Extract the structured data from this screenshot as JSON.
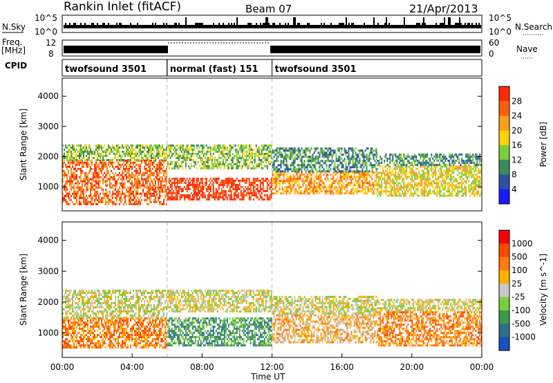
{
  "header": {
    "title": "Rankin Inlet (fitACF)",
    "beam": "Beam 07",
    "date": "21/Apr/2013"
  },
  "top_panels": {
    "nsky_label": "N.Sky",
    "nsky_ticks": [
      "10^5",
      "10^0"
    ],
    "nsearch_label": "N.Search",
    "nsearch_ticks": [
      "10^5",
      "10^0"
    ],
    "freq_label": "Freq.",
    "freq_unit": "[MHz]",
    "freq_ticks": [
      "12",
      "8"
    ],
    "nave_label": "Nave",
    "nave_ticks": [
      "60",
      "0"
    ],
    "cpid_label": "CPID",
    "cpid_segments": [
      {
        "label": "twofsound 3501",
        "start_h": 0,
        "end_h": 6
      },
      {
        "label": "normal (fast) 151",
        "start_h": 6,
        "end_h": 12
      },
      {
        "label": "twofsound 3501",
        "start_h": 12,
        "end_h": 24
      }
    ]
  },
  "time_axis": {
    "label": "Time UT",
    "ticks": [
      "00:00",
      "04:00",
      "08:00",
      "12:00",
      "16:00",
      "20:00",
      "00:00"
    ]
  },
  "chart_data": [
    {
      "type": "heatmap",
      "title": "",
      "xlabel": "Time UT",
      "ylabel": "Slant Range [km]",
      "xlim": [
        0,
        24
      ],
      "ylim": [
        200,
        4600
      ],
      "yticks": [
        "1000",
        "2000",
        "3000",
        "4000"
      ],
      "colorbar_label": "Power [dB]",
      "colorbar_ticks": [
        "4",
        "8",
        "12",
        "16",
        "20",
        "24",
        "28"
      ],
      "colorbar_colors": [
        "#1a1aff",
        "#2f4fa0",
        "#3a8a5a",
        "#7ccd3a",
        "#ffd200",
        "#ff9d1e",
        "#ff6010",
        "#ff2a00"
      ],
      "bands": [
        {
          "t0": 0,
          "t1": 6,
          "r0": 400,
          "r1": 1900,
          "level": 6
        },
        {
          "t0": 0,
          "t1": 6,
          "r0": 1900,
          "r1": 2400,
          "level": 3
        },
        {
          "t0": 6,
          "t1": 12,
          "r0": 600,
          "r1": 1300,
          "level": 7
        },
        {
          "t0": 6,
          "t1": 12,
          "r0": 1600,
          "r1": 2400,
          "level": 3
        },
        {
          "t0": 12,
          "t1": 18,
          "r0": 800,
          "r1": 1500,
          "level": 5
        },
        {
          "t0": 12,
          "t1": 18,
          "r0": 1500,
          "r1": 2300,
          "level": 2
        },
        {
          "t0": 18,
          "t1": 24,
          "r0": 700,
          "r1": 1700,
          "level": 4
        },
        {
          "t0": 18,
          "t1": 24,
          "r0": 1700,
          "r1": 2100,
          "level": 2
        }
      ]
    },
    {
      "type": "heatmap",
      "title": "",
      "xlabel": "Time UT",
      "ylabel": "Slant Range [km]",
      "xlim": [
        0,
        24
      ],
      "ylim": [
        200,
        4600
      ],
      "yticks": [
        "1000",
        "2000",
        "3000",
        "4000"
      ],
      "colorbar_label": "Velocity [m s^-1]",
      "colorbar_ticks": [
        "1000",
        "500",
        "100",
        "25",
        "-25",
        "-100",
        "-500",
        "-1000"
      ],
      "colorbar_colors": [
        "#1a4fc0",
        "#2f6f8a",
        "#3a9a4a",
        "#7ccd3a",
        "#c8c8c8",
        "#ffb000",
        "#ff7a10",
        "#ff4a00",
        "#ff0000"
      ],
      "bands": [
        {
          "t0": 0,
          "t1": 6,
          "r0": 500,
          "r1": 1500,
          "level": 6
        },
        {
          "t0": 0,
          "t1": 6,
          "r0": 1500,
          "r1": 2400,
          "level": 4
        },
        {
          "t0": 6,
          "t1": 12,
          "r0": 600,
          "r1": 1500,
          "level": 2
        },
        {
          "t0": 6,
          "t1": 12,
          "r0": 1700,
          "r1": 2400,
          "level": 4
        },
        {
          "t0": 12,
          "t1": 18,
          "r0": 700,
          "r1": 1600,
          "level": 5
        },
        {
          "t0": 12,
          "t1": 18,
          "r0": 1600,
          "r1": 2200,
          "level": 4
        },
        {
          "t0": 18,
          "t1": 24,
          "r0": 600,
          "r1": 1700,
          "level": 6
        },
        {
          "t0": 18,
          "t1": 24,
          "r0": 1700,
          "r1": 2100,
          "level": 4
        }
      ]
    }
  ]
}
